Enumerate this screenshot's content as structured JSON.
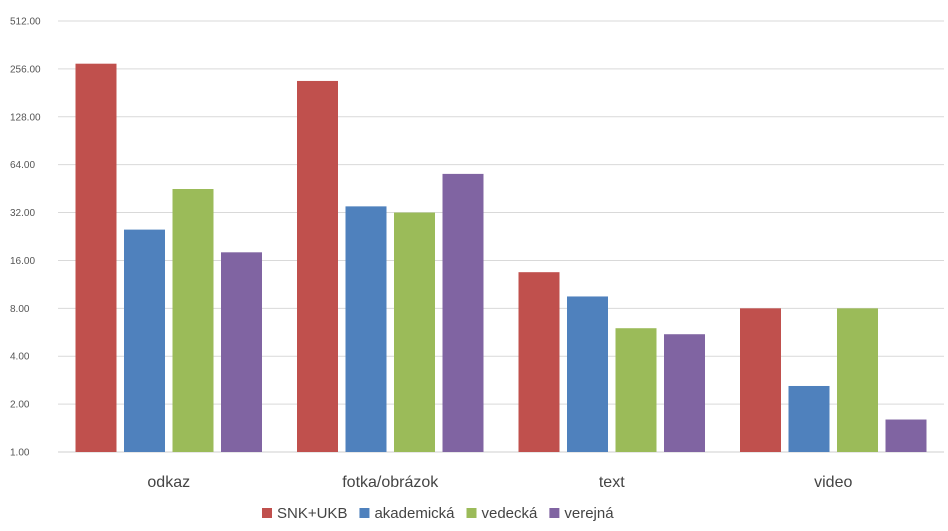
{
  "chart_data": {
    "type": "bar",
    "title": "",
    "xlabel": "",
    "ylabel": "",
    "y_scale": "log2",
    "ylim": [
      1,
      512
    ],
    "grid": true,
    "legend_position": "bottom",
    "y_ticks": [
      "1.00",
      "2.00",
      "4.00",
      "8.00",
      "16.00",
      "32.00",
      "64.00",
      "128.00",
      "256.00",
      "512.00"
    ],
    "y_tick_values": [
      1,
      2,
      4,
      8,
      16,
      32,
      64,
      128,
      256,
      512
    ],
    "categories": [
      "odkaz",
      "fotka/obrázok",
      "text",
      "video"
    ],
    "series": [
      {
        "name": "SNK+UKB",
        "color": "#c0504d",
        "values": [
          276,
          215,
          13.5,
          8
        ]
      },
      {
        "name": "akademická",
        "color": "#4f81bd",
        "values": [
          25,
          35,
          9.5,
          2.6
        ]
      },
      {
        "name": "vedecká",
        "color": "#9bbb59",
        "values": [
          45,
          32,
          6,
          8
        ]
      },
      {
        "name": "verejná",
        "color": "#8064a2",
        "values": [
          18,
          56,
          5.5,
          1.6
        ]
      }
    ]
  }
}
